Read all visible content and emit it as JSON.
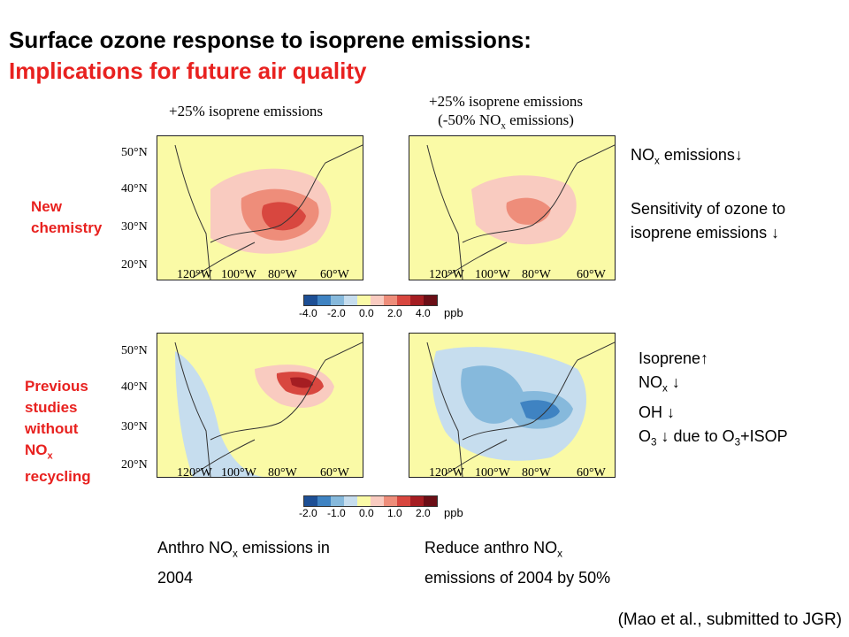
{
  "slide": {
    "title_line1": "Surface ozone response to isoprene emissions:",
    "title_line2": "Implications for future air quality",
    "citation": "(Mao et al., submitted to JGR)"
  },
  "panels": {
    "left_title": "+25% isoprene emissions",
    "right_title_line1": "+25% isoprene emissions",
    "right_title_line2_pre": "(-50% NO",
    "right_title_line2_sub": "x",
    "right_title_line2_post": " emissions)"
  },
  "rows": {
    "top_label_line1": "New",
    "top_label_line2": "chemistry",
    "bottom_label_line1": "Previous",
    "bottom_label_line2": "studies",
    "bottom_label_line3": "without",
    "bottom_label_line4_pre": "NO",
    "bottom_label_line4_sub": "x",
    "bottom_label_line5": "recycling"
  },
  "axes": {
    "lat_ticks": [
      "50°N",
      "40°N",
      "30°N",
      "20°N"
    ],
    "lon_ticks": [
      "120°W",
      "100°W",
      "80°W",
      "60°W"
    ]
  },
  "colorbars": {
    "top": [
      "-4.0",
      "-2.0",
      "0.0",
      "2.0",
      "4.0"
    ],
    "bottom": [
      "-2.0",
      "-1.0",
      "0.0",
      "1.0",
      "2.0"
    ],
    "unit": "ppb",
    "colors": [
      "#1d4f95",
      "#3f83c2",
      "#86b9dc",
      "#c6ddee",
      "#fafaa6",
      "#f9cbc0",
      "#ee8d7a",
      "#d8473f",
      "#a51d22",
      "#6b0e16"
    ]
  },
  "notes": {
    "top_right_line1_pre": "NO",
    "top_right_line1_sub": "x",
    "top_right_line1_post": " emissions↓",
    "top_right_line2": "Sensitivity of ozone to",
    "top_right_line3": "isoprene emissions ↓",
    "bottom_right_line1": "Isoprene↑",
    "bottom_right_line2_pre": "NO",
    "bottom_right_line2_sub": "x",
    "bottom_right_line2_post": " ↓",
    "bottom_right_line3": "OH ↓",
    "bottom_right_line4_a": "O",
    "bottom_right_line4_sub1": "3",
    "bottom_right_line4_b": " ↓  due to O",
    "bottom_right_line4_sub2": "3",
    "bottom_right_line4_c": "+ISOP",
    "bottom_left_line1_pre": "Anthro NO",
    "bottom_left_line1_sub": "x",
    "bottom_left_line1_post": " emissions in",
    "bottom_left_line2": "2004",
    "bottom_mid_line1_pre": "Reduce anthro NO",
    "bottom_mid_line1_sub": "x",
    "bottom_mid_line2": "emissions of 2004 by 50%"
  }
}
